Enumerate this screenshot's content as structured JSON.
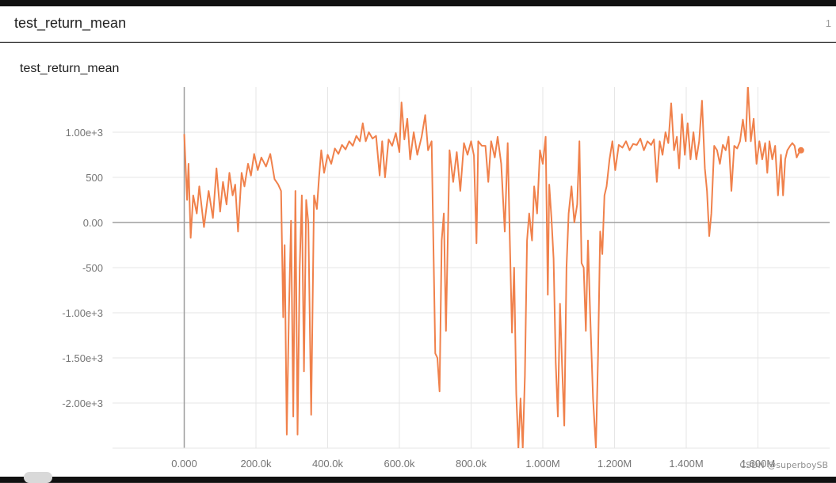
{
  "header": {
    "title": "test_return_mean",
    "count": "1"
  },
  "card": {
    "title": "test_return_mean"
  },
  "watermark": "CSDN @superboySB",
  "colors": {
    "series": "#f0814b",
    "grid": "#e6e6e6",
    "axis": "#9e9e9e",
    "tick_text": "#757575"
  },
  "chart_data": {
    "type": "line",
    "title": "test_return_mean",
    "xlabel": "",
    "ylabel": "",
    "xlim": [
      -200000,
      1800000
    ],
    "ylim": [
      -2500,
      1500
    ],
    "grid": true,
    "x_ticks": [
      {
        "value": 0,
        "label": "0.000"
      },
      {
        "value": 200000,
        "label": "200.0k"
      },
      {
        "value": 400000,
        "label": "400.0k"
      },
      {
        "value": 600000,
        "label": "600.0k"
      },
      {
        "value": 800000,
        "label": "800.0k"
      },
      {
        "value": 1000000,
        "label": "1.000M"
      },
      {
        "value": 1200000,
        "label": "1.200M"
      },
      {
        "value": 1400000,
        "label": "1.400M"
      },
      {
        "value": 1600000,
        "label": "1.600M"
      }
    ],
    "y_ticks": [
      {
        "value": 1000,
        "label": "1.00e+3"
      },
      {
        "value": 500,
        "label": "500"
      },
      {
        "value": 0,
        "label": "0.00"
      },
      {
        "value": -500,
        "label": "-500"
      },
      {
        "value": -1000,
        "label": "-1.00e+3"
      },
      {
        "value": -1500,
        "label": "-1.50e+3"
      },
      {
        "value": -2000,
        "label": "-2.00e+3"
      }
    ],
    "series": [
      {
        "values": [
          [
            0,
            980
          ],
          [
            8000,
            250
          ],
          [
            12000,
            650
          ],
          [
            18000,
            -170
          ],
          [
            25000,
            300
          ],
          [
            35000,
            100
          ],
          [
            42000,
            400
          ],
          [
            55000,
            -50
          ],
          [
            68000,
            350
          ],
          [
            80000,
            50
          ],
          [
            90000,
            600
          ],
          [
            100000,
            120
          ],
          [
            108000,
            450
          ],
          [
            118000,
            200
          ],
          [
            126000,
            550
          ],
          [
            135000,
            300
          ],
          [
            142000,
            420
          ],
          [
            150000,
            -100
          ],
          [
            160000,
            550
          ],
          [
            168000,
            400
          ],
          [
            178000,
            650
          ],
          [
            186000,
            520
          ],
          [
            195000,
            760
          ],
          [
            205000,
            580
          ],
          [
            215000,
            720
          ],
          [
            228000,
            620
          ],
          [
            240000,
            760
          ],
          [
            252000,
            480
          ],
          [
            262000,
            420
          ],
          [
            270000,
            350
          ],
          [
            276000,
            -1050
          ],
          [
            280000,
            -250
          ],
          [
            286000,
            -2350
          ],
          [
            292000,
            -1000
          ],
          [
            298000,
            20
          ],
          [
            304000,
            -2150
          ],
          [
            310000,
            350
          ],
          [
            316000,
            -2350
          ],
          [
            322000,
            -500
          ],
          [
            328000,
            300
          ],
          [
            334000,
            -1650
          ],
          [
            340000,
            250
          ],
          [
            346000,
            0
          ],
          [
            354000,
            -2130
          ],
          [
            362000,
            300
          ],
          [
            370000,
            150
          ],
          [
            376000,
            500
          ],
          [
            382000,
            800
          ],
          [
            390000,
            550
          ],
          [
            400000,
            750
          ],
          [
            410000,
            650
          ],
          [
            420000,
            820
          ],
          [
            430000,
            760
          ],
          [
            440000,
            860
          ],
          [
            450000,
            810
          ],
          [
            460000,
            900
          ],
          [
            470000,
            850
          ],
          [
            480000,
            960
          ],
          [
            490000,
            900
          ],
          [
            498000,
            1100
          ],
          [
            506000,
            900
          ],
          [
            515000,
            1000
          ],
          [
            525000,
            930
          ],
          [
            535000,
            960
          ],
          [
            545000,
            520
          ],
          [
            552000,
            900
          ],
          [
            560000,
            500
          ],
          [
            570000,
            920
          ],
          [
            580000,
            850
          ],
          [
            590000,
            990
          ],
          [
            600000,
            780
          ],
          [
            606000,
            1330
          ],
          [
            614000,
            920
          ],
          [
            622000,
            1150
          ],
          [
            630000,
            700
          ],
          [
            640000,
            1000
          ],
          [
            650000,
            750
          ],
          [
            662000,
            950
          ],
          [
            672000,
            1190
          ],
          [
            680000,
            800
          ],
          [
            690000,
            900
          ],
          [
            700000,
            -1450
          ],
          [
            706000,
            -1500
          ],
          [
            712000,
            -1870
          ],
          [
            718000,
            -200
          ],
          [
            724000,
            100
          ],
          [
            730000,
            -1200
          ],
          [
            740000,
            800
          ],
          [
            750000,
            450
          ],
          [
            760000,
            780
          ],
          [
            770000,
            350
          ],
          [
            780000,
            880
          ],
          [
            790000,
            750
          ],
          [
            800000,
            900
          ],
          [
            808000,
            740
          ],
          [
            815000,
            -230
          ],
          [
            820000,
            900
          ],
          [
            830000,
            850
          ],
          [
            840000,
            850
          ],
          [
            848000,
            450
          ],
          [
            856000,
            900
          ],
          [
            866000,
            720
          ],
          [
            874000,
            950
          ],
          [
            884000,
            650
          ],
          [
            894000,
            -100
          ],
          [
            902000,
            880
          ],
          [
            908000,
            -200
          ],
          [
            914000,
            -1220
          ],
          [
            920000,
            -500
          ],
          [
            926000,
            -1900
          ],
          [
            932000,
            -2500
          ],
          [
            938000,
            -1950
          ],
          [
            944000,
            -2500
          ],
          [
            950000,
            -1700
          ],
          [
            956000,
            -200
          ],
          [
            962000,
            100
          ],
          [
            970000,
            -200
          ],
          [
            976000,
            400
          ],
          [
            984000,
            100
          ],
          [
            992000,
            800
          ],
          [
            1000000,
            650
          ],
          [
            1008000,
            950
          ],
          [
            1014000,
            -800
          ],
          [
            1018000,
            420
          ],
          [
            1024000,
            50
          ],
          [
            1030000,
            -400
          ],
          [
            1036000,
            -1550
          ],
          [
            1042000,
            -2150
          ],
          [
            1048000,
            -900
          ],
          [
            1054000,
            -1600
          ],
          [
            1060000,
            -2250
          ],
          [
            1066000,
            -500
          ],
          [
            1072000,
            100
          ],
          [
            1080000,
            400
          ],
          [
            1088000,
            0
          ],
          [
            1096000,
            200
          ],
          [
            1102000,
            900
          ],
          [
            1108000,
            -450
          ],
          [
            1114000,
            -500
          ],
          [
            1120000,
            -1200
          ],
          [
            1126000,
            -200
          ],
          [
            1132000,
            -1000
          ],
          [
            1140000,
            -1950
          ],
          [
            1148000,
            -2500
          ],
          [
            1154000,
            -1480
          ],
          [
            1160000,
            -100
          ],
          [
            1166000,
            -350
          ],
          [
            1172000,
            300
          ],
          [
            1178000,
            400
          ],
          [
            1186000,
            700
          ],
          [
            1194000,
            900
          ],
          [
            1202000,
            580
          ],
          [
            1212000,
            860
          ],
          [
            1222000,
            830
          ],
          [
            1232000,
            900
          ],
          [
            1242000,
            800
          ],
          [
            1252000,
            870
          ],
          [
            1262000,
            860
          ],
          [
            1272000,
            930
          ],
          [
            1282000,
            800
          ],
          [
            1292000,
            900
          ],
          [
            1302000,
            860
          ],
          [
            1310000,
            920
          ],
          [
            1318000,
            450
          ],
          [
            1326000,
            900
          ],
          [
            1334000,
            750
          ],
          [
            1342000,
            1000
          ],
          [
            1350000,
            880
          ],
          [
            1358000,
            1320
          ],
          [
            1366000,
            800
          ],
          [
            1374000,
            950
          ],
          [
            1380000,
            600
          ],
          [
            1388000,
            1200
          ],
          [
            1396000,
            750
          ],
          [
            1404000,
            1100
          ],
          [
            1412000,
            700
          ],
          [
            1420000,
            1000
          ],
          [
            1428000,
            700
          ],
          [
            1436000,
            900
          ],
          [
            1444000,
            1350
          ],
          [
            1452000,
            600
          ],
          [
            1458000,
            350
          ],
          [
            1464000,
            -150
          ],
          [
            1470000,
            100
          ],
          [
            1478000,
            850
          ],
          [
            1486000,
            800
          ],
          [
            1494000,
            650
          ],
          [
            1502000,
            860
          ],
          [
            1510000,
            800
          ],
          [
            1518000,
            950
          ],
          [
            1526000,
            350
          ],
          [
            1534000,
            850
          ],
          [
            1542000,
            820
          ],
          [
            1550000,
            900
          ],
          [
            1558000,
            1140
          ],
          [
            1566000,
            900
          ],
          [
            1572000,
            1520
          ],
          [
            1580000,
            900
          ],
          [
            1588000,
            1150
          ],
          [
            1596000,
            650
          ],
          [
            1604000,
            900
          ],
          [
            1612000,
            700
          ],
          [
            1620000,
            880
          ],
          [
            1626000,
            550
          ],
          [
            1632000,
            900
          ],
          [
            1640000,
            700
          ],
          [
            1648000,
            850
          ],
          [
            1656000,
            300
          ],
          [
            1664000,
            750
          ],
          [
            1670000,
            300
          ],
          [
            1676000,
            700
          ],
          [
            1682000,
            800
          ],
          [
            1690000,
            850
          ],
          [
            1696000,
            880
          ],
          [
            1702000,
            850
          ],
          [
            1708000,
            720
          ],
          [
            1714000,
            770
          ],
          [
            1720000,
            800
          ]
        ]
      }
    ]
  }
}
